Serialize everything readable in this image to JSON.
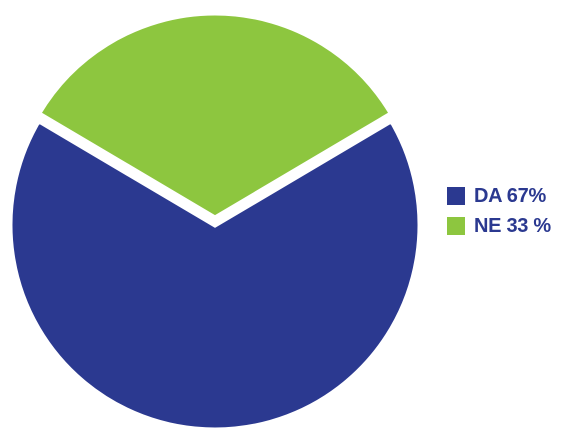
{
  "chart_data": {
    "type": "pie",
    "title": "",
    "slices": [
      {
        "label": "DA 67%",
        "value": 67,
        "color": "#2b3990"
      },
      {
        "label": "NE 33 %",
        "value": 33,
        "color": "#8dc63f"
      }
    ],
    "separator_color": "#ffffff",
    "legend_position": "right"
  }
}
